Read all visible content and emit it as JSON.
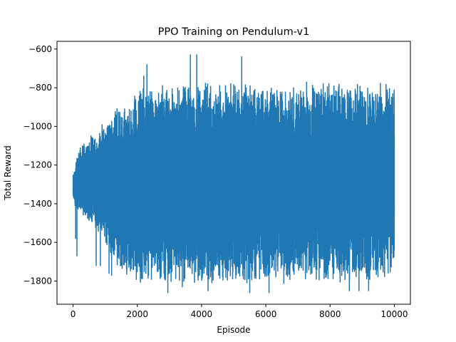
{
  "chart_data": {
    "type": "line",
    "title": "PPO Training on Pendulum-v1",
    "xlabel": "Episode",
    "ylabel": "Total Reward",
    "xlim": [
      -500,
      10500
    ],
    "ylim": [
      -1920,
      -560
    ],
    "xticks": [
      0,
      2000,
      4000,
      6000,
      8000,
      10000
    ],
    "xtick_labels": [
      "0",
      "2000",
      "4000",
      "6000",
      "8000",
      "10000"
    ],
    "yticks": [
      -1800,
      -1600,
      -1400,
      -1200,
      -1000,
      -800,
      -600
    ],
    "ytick_labels": [
      "−1800",
      "−1600",
      "−1400",
      "−1200",
      "−1000",
      "−800",
      "−600"
    ],
    "grid": false,
    "series": [
      {
        "color": "#1f77b4",
        "num_points": 10000,
        "envelope": {
          "x": [
            0,
            200,
            500,
            800,
            1000,
            1200,
            1500,
            1800,
            2000,
            3000,
            4000,
            6000,
            8000,
            10000
          ],
          "upper": [
            -1250,
            -1100,
            -1050,
            -1000,
            -950,
            -900,
            -900,
            -850,
            -800,
            -780,
            -770,
            -770,
            -770,
            -770
          ],
          "lower": [
            -1400,
            -1450,
            -1500,
            -1550,
            -1600,
            -1700,
            -1750,
            -1800,
            -1810,
            -1820,
            -1820,
            -1820,
            -1810,
            -1800
          ]
        },
        "spikes": [
          {
            "x": 80,
            "y": -1580
          },
          {
            "x": 120,
            "y": -1670
          },
          {
            "x": 720,
            "y": -1720
          },
          {
            "x": 850,
            "y": -1720
          },
          {
            "x": 1120,
            "y": -1760
          },
          {
            "x": 1200,
            "y": -1770
          },
          {
            "x": 2200,
            "y": -740
          },
          {
            "x": 2300,
            "y": -680
          },
          {
            "x": 2950,
            "y": -1860
          },
          {
            "x": 3400,
            "y": -1830
          },
          {
            "x": 3650,
            "y": -630
          },
          {
            "x": 3850,
            "y": -630
          },
          {
            "x": 4200,
            "y": -1850
          },
          {
            "x": 5250,
            "y": -640
          },
          {
            "x": 5500,
            "y": -1860
          },
          {
            "x": 6100,
            "y": -1860
          },
          {
            "x": 8600,
            "y": -1850
          },
          {
            "x": 8900,
            "y": -1850
          },
          {
            "x": 9200,
            "y": -1850
          }
        ]
      }
    ]
  }
}
